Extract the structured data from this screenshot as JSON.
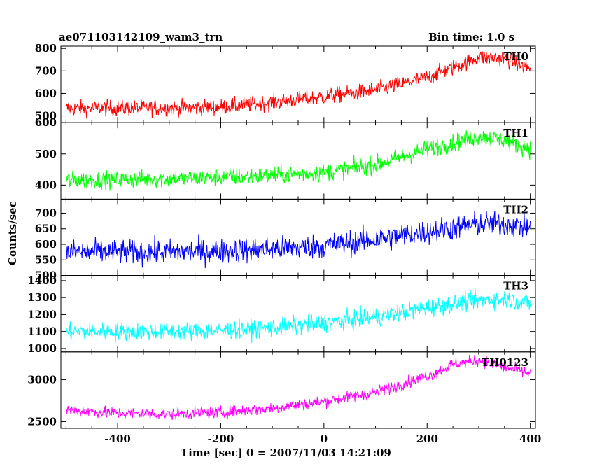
{
  "header": {
    "title": "ae071103142109_wam3_trn",
    "bin_time": "Bin time: 1.0 s"
  },
  "chart_data": {
    "type": "line",
    "title": "ae071103142109_wam3_trn",
    "subtitle": "Bin time: 1.0 s",
    "xlabel": "Time [sec] 0 = 2007/11/03 14:21:09",
    "ylabel": "Counts/sec",
    "xlim": [
      -510,
      410
    ],
    "x_ticks": [
      -400,
      -200,
      0,
      200,
      400
    ],
    "x_range": [
      -500,
      400
    ],
    "bin_time_s": 1.0,
    "grid": false,
    "panels": [
      {
        "name": "TH0",
        "color": "#ff0000",
        "ylim": [
          470,
          810
        ],
        "y_ticks": [
          500,
          600,
          700,
          800
        ],
        "trend": {
          "x": [
            -500,
            -300,
            -200,
            -100,
            0,
            100,
            200,
            300,
            350,
            400
          ],
          "y": [
            535,
            535,
            540,
            560,
            585,
            615,
            670,
            760,
            755,
            710
          ]
        },
        "noise": 25
      },
      {
        "name": "TH1",
        "color": "#00ff00",
        "ylim": [
          355,
          600
        ],
        "y_ticks": [
          400,
          500,
          600
        ],
        "trend": {
          "x": [
            -500,
            -300,
            -200,
            -100,
            0,
            100,
            200,
            300,
            350,
            400
          ],
          "y": [
            415,
            420,
            425,
            430,
            440,
            465,
            515,
            555,
            545,
            515
          ]
        },
        "noise": 20
      },
      {
        "name": "TH2",
        "color": "#0000ff",
        "ylim": [
          500,
          745
        ],
        "y_ticks": [
          500,
          550,
          600,
          650,
          700
        ],
        "trend": {
          "x": [
            -500,
            -300,
            -200,
            -100,
            0,
            100,
            200,
            300,
            350,
            400
          ],
          "y": [
            575,
            575,
            578,
            585,
            595,
            615,
            640,
            665,
            665,
            655
          ]
        },
        "noise": 28
      },
      {
        "name": "TH3",
        "color": "#00ffff",
        "ylim": [
          980,
          1430
        ],
        "y_ticks": [
          1000,
          1100,
          1200,
          1300,
          1400
        ],
        "trend": {
          "x": [
            -500,
            -300,
            -200,
            -100,
            0,
            100,
            200,
            300,
            350,
            400
          ],
          "y": [
            1100,
            1100,
            1105,
            1120,
            1150,
            1185,
            1240,
            1285,
            1290,
            1265
          ]
        },
        "noise": 38
      },
      {
        "name": "TH0123",
        "color": "#ff00ff",
        "ylim": [
          2420,
          3330
        ],
        "y_ticks": [
          2500,
          3000
        ],
        "trend": {
          "x": [
            -500,
            -400,
            -300,
            -200,
            -100,
            0,
            100,
            200,
            250,
            300,
            350,
            400
          ],
          "y": [
            2640,
            2600,
            2590,
            2610,
            2660,
            2740,
            2850,
            3040,
            3180,
            3230,
            3150,
            3070
          ]
        },
        "noise": 50
      }
    ]
  }
}
